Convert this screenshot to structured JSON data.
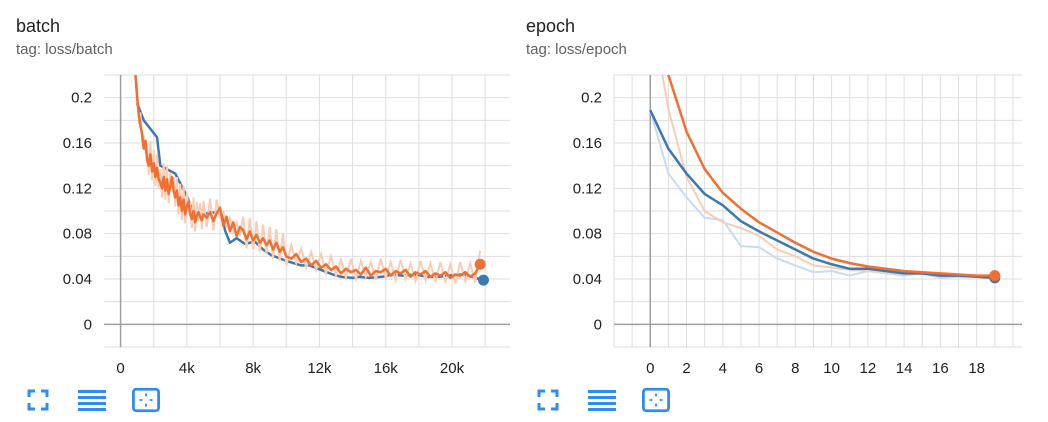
{
  "colors": {
    "blue": "#3b78b5",
    "orange": "#f06f32",
    "blue_raw": "#c7dcf0",
    "orange_raw": "#f9cdb5",
    "grid": "#dedede",
    "axis": "#9e9e9e",
    "icon": "#2f8cf0"
  },
  "toolbar_icons": [
    "fullscreen-icon",
    "toggle-log-scale-icon",
    "fit-domain-icon"
  ],
  "charts": [
    {
      "title": "batch",
      "tag": "tag: loss/batch"
    },
    {
      "title": "epoch",
      "tag": "tag: loss/epoch"
    }
  ],
  "chart_data": [
    {
      "type": "line",
      "title": "batch",
      "subtitle": "tag: loss/batch",
      "xlim": [
        -1000,
        23500
      ],
      "ylim": [
        -0.02,
        0.22
      ],
      "x_ticks": [
        0,
        4000,
        8000,
        12000,
        16000,
        20000
      ],
      "x_tick_labels": [
        "0",
        "4k",
        "8k",
        "12k",
        "16k",
        "20k"
      ],
      "y_ticks": [
        0,
        0.04,
        0.08,
        0.12,
        0.16,
        0.2
      ],
      "y_tick_labels": [
        "0",
        "0.04",
        "0.08",
        "0.12",
        "0.16",
        "0.2"
      ],
      "grid": true,
      "series": [
        {
          "color": "#3b78b5",
          "x": [
            1000,
            1400,
            2200,
            2400,
            3300,
            4000,
            4400,
            5000,
            5400,
            6100,
            6300,
            6600,
            7000,
            7500,
            8100,
            8600,
            9100,
            10000,
            10900,
            11400,
            12100,
            12800,
            13300,
            14000,
            14400,
            15000,
            15800,
            16400,
            17000,
            17800,
            18500,
            19200,
            19800,
            20500,
            21000,
            21400,
            21900
          ],
          "values": [
            0.195,
            0.18,
            0.165,
            0.14,
            0.133,
            0.113,
            0.099,
            0.097,
            0.099,
            0.098,
            0.083,
            0.072,
            0.076,
            0.071,
            0.073,
            0.066,
            0.061,
            0.056,
            0.052,
            0.052,
            0.048,
            0.044,
            0.042,
            0.041,
            0.042,
            0.041,
            0.042,
            0.044,
            0.043,
            0.044,
            0.042,
            0.042,
            0.043,
            0.044,
            0.043,
            0.041,
            0.039
          ]
        },
        {
          "color": "#f06f32",
          "x": [
            900,
            1000,
            1100,
            1200,
            1300,
            1400,
            1500,
            1600,
            1700,
            1800,
            1900,
            2000,
            2100,
            2200,
            2300,
            2400,
            2500,
            2600,
            2700,
            2800,
            2900,
            3000,
            3100,
            3200,
            3300,
            3400,
            3500,
            3600,
            3700,
            3800,
            3900,
            4000,
            4100,
            4200,
            4300,
            4400,
            4500,
            4600,
            4700,
            4800,
            4900,
            5000,
            5200,
            5400,
            5600,
            5800,
            6000,
            6200,
            6400,
            6600,
            6800,
            7000,
            7200,
            7400,
            7600,
            7800,
            8000,
            8200,
            8400,
            8600,
            8800,
            9000,
            9200,
            9400,
            9600,
            9800,
            10000,
            10300,
            10600,
            10900,
            11200,
            11500,
            11800,
            12100,
            12400,
            12700,
            13000,
            13300,
            13600,
            13900,
            14200,
            14500,
            14800,
            15100,
            15400,
            15700,
            16000,
            16300,
            16600,
            16900,
            17200,
            17500,
            17800,
            18100,
            18400,
            18700,
            19000,
            19300,
            19600,
            19900,
            20200,
            20500,
            20800,
            21100,
            21400,
            21700
          ],
          "values": [
            0.22,
            0.2,
            0.185,
            0.175,
            0.168,
            0.155,
            0.162,
            0.145,
            0.14,
            0.15,
            0.135,
            0.142,
            0.13,
            0.138,
            0.128,
            0.125,
            0.12,
            0.13,
            0.118,
            0.128,
            0.115,
            0.122,
            0.13,
            0.118,
            0.112,
            0.118,
            0.105,
            0.112,
            0.1,
            0.11,
            0.097,
            0.104,
            0.108,
            0.097,
            0.093,
            0.1,
            0.09,
            0.096,
            0.099,
            0.095,
            0.092,
            0.097,
            0.094,
            0.099,
            0.091,
            0.098,
            0.103,
            0.087,
            0.095,
            0.082,
            0.09,
            0.078,
            0.086,
            0.083,
            0.075,
            0.082,
            0.074,
            0.079,
            0.072,
            0.076,
            0.07,
            0.074,
            0.066,
            0.072,
            0.064,
            0.068,
            0.06,
            0.058,
            0.062,
            0.055,
            0.058,
            0.052,
            0.056,
            0.05,
            0.053,
            0.048,
            0.051,
            0.045,
            0.049,
            0.046,
            0.048,
            0.044,
            0.05,
            0.043,
            0.047,
            0.046,
            0.049,
            0.043,
            0.047,
            0.045,
            0.048,
            0.042,
            0.046,
            0.044,
            0.047,
            0.042,
            0.045,
            0.043,
            0.046,
            0.041,
            0.044,
            0.043,
            0.046,
            0.042,
            0.045,
            0.053
          ]
        }
      ]
    },
    {
      "type": "line",
      "title": "epoch",
      "subtitle": "tag: loss/epoch",
      "xlim": [
        -2,
        20.5
      ],
      "ylim": [
        -0.02,
        0.22
      ],
      "x_ticks": [
        0,
        2,
        4,
        6,
        8,
        10,
        12,
        14,
        16,
        18
      ],
      "x_tick_labels": [
        "0",
        "2",
        "4",
        "6",
        "8",
        "10",
        "12",
        "14",
        "16",
        "18"
      ],
      "y_ticks": [
        0,
        0.04,
        0.08,
        0.12,
        0.16,
        0.2
      ],
      "y_tick_labels": [
        "0",
        "0.04",
        "0.08",
        "0.12",
        "0.16",
        "0.2"
      ],
      "grid": true,
      "series": [
        {
          "color": "#3b78b5",
          "x": [
            0,
            1,
            2,
            3,
            4,
            5,
            6,
            7,
            8,
            9,
            10,
            11,
            12,
            13,
            14,
            15,
            16,
            17,
            18,
            19
          ],
          "values": [
            0.189,
            0.155,
            0.133,
            0.115,
            0.105,
            0.091,
            0.082,
            0.074,
            0.066,
            0.058,
            0.053,
            0.049,
            0.049,
            0.047,
            0.045,
            0.045,
            0.043,
            0.043,
            0.042,
            0.041
          ],
          "raw": [
            0.189,
            0.133,
            0.112,
            0.094,
            0.092,
            0.069,
            0.068,
            0.058,
            0.052,
            0.046,
            0.047,
            0.043,
            0.047,
            0.045,
            0.043,
            0.045,
            0.041,
            0.042,
            0.042,
            0.041
          ]
        },
        {
          "color": "#f06f32",
          "x": [
            0,
            1,
            2,
            3,
            4,
            5,
            6,
            7,
            8,
            9,
            10,
            11,
            12,
            13,
            14,
            15,
            16,
            17,
            18,
            19
          ],
          "values": [
            0.28,
            0.22,
            0.17,
            0.137,
            0.116,
            0.102,
            0.09,
            0.081,
            0.072,
            0.064,
            0.058,
            0.054,
            0.051,
            0.049,
            0.047,
            0.046,
            0.045,
            0.044,
            0.043,
            0.043
          ],
          "raw": [
            0.28,
            0.19,
            0.13,
            0.1,
            0.09,
            0.085,
            0.078,
            0.066,
            0.06,
            0.052,
            0.05,
            0.048,
            0.047,
            0.046,
            0.045,
            0.044,
            0.044,
            0.043,
            0.043,
            0.043
          ]
        }
      ]
    }
  ]
}
